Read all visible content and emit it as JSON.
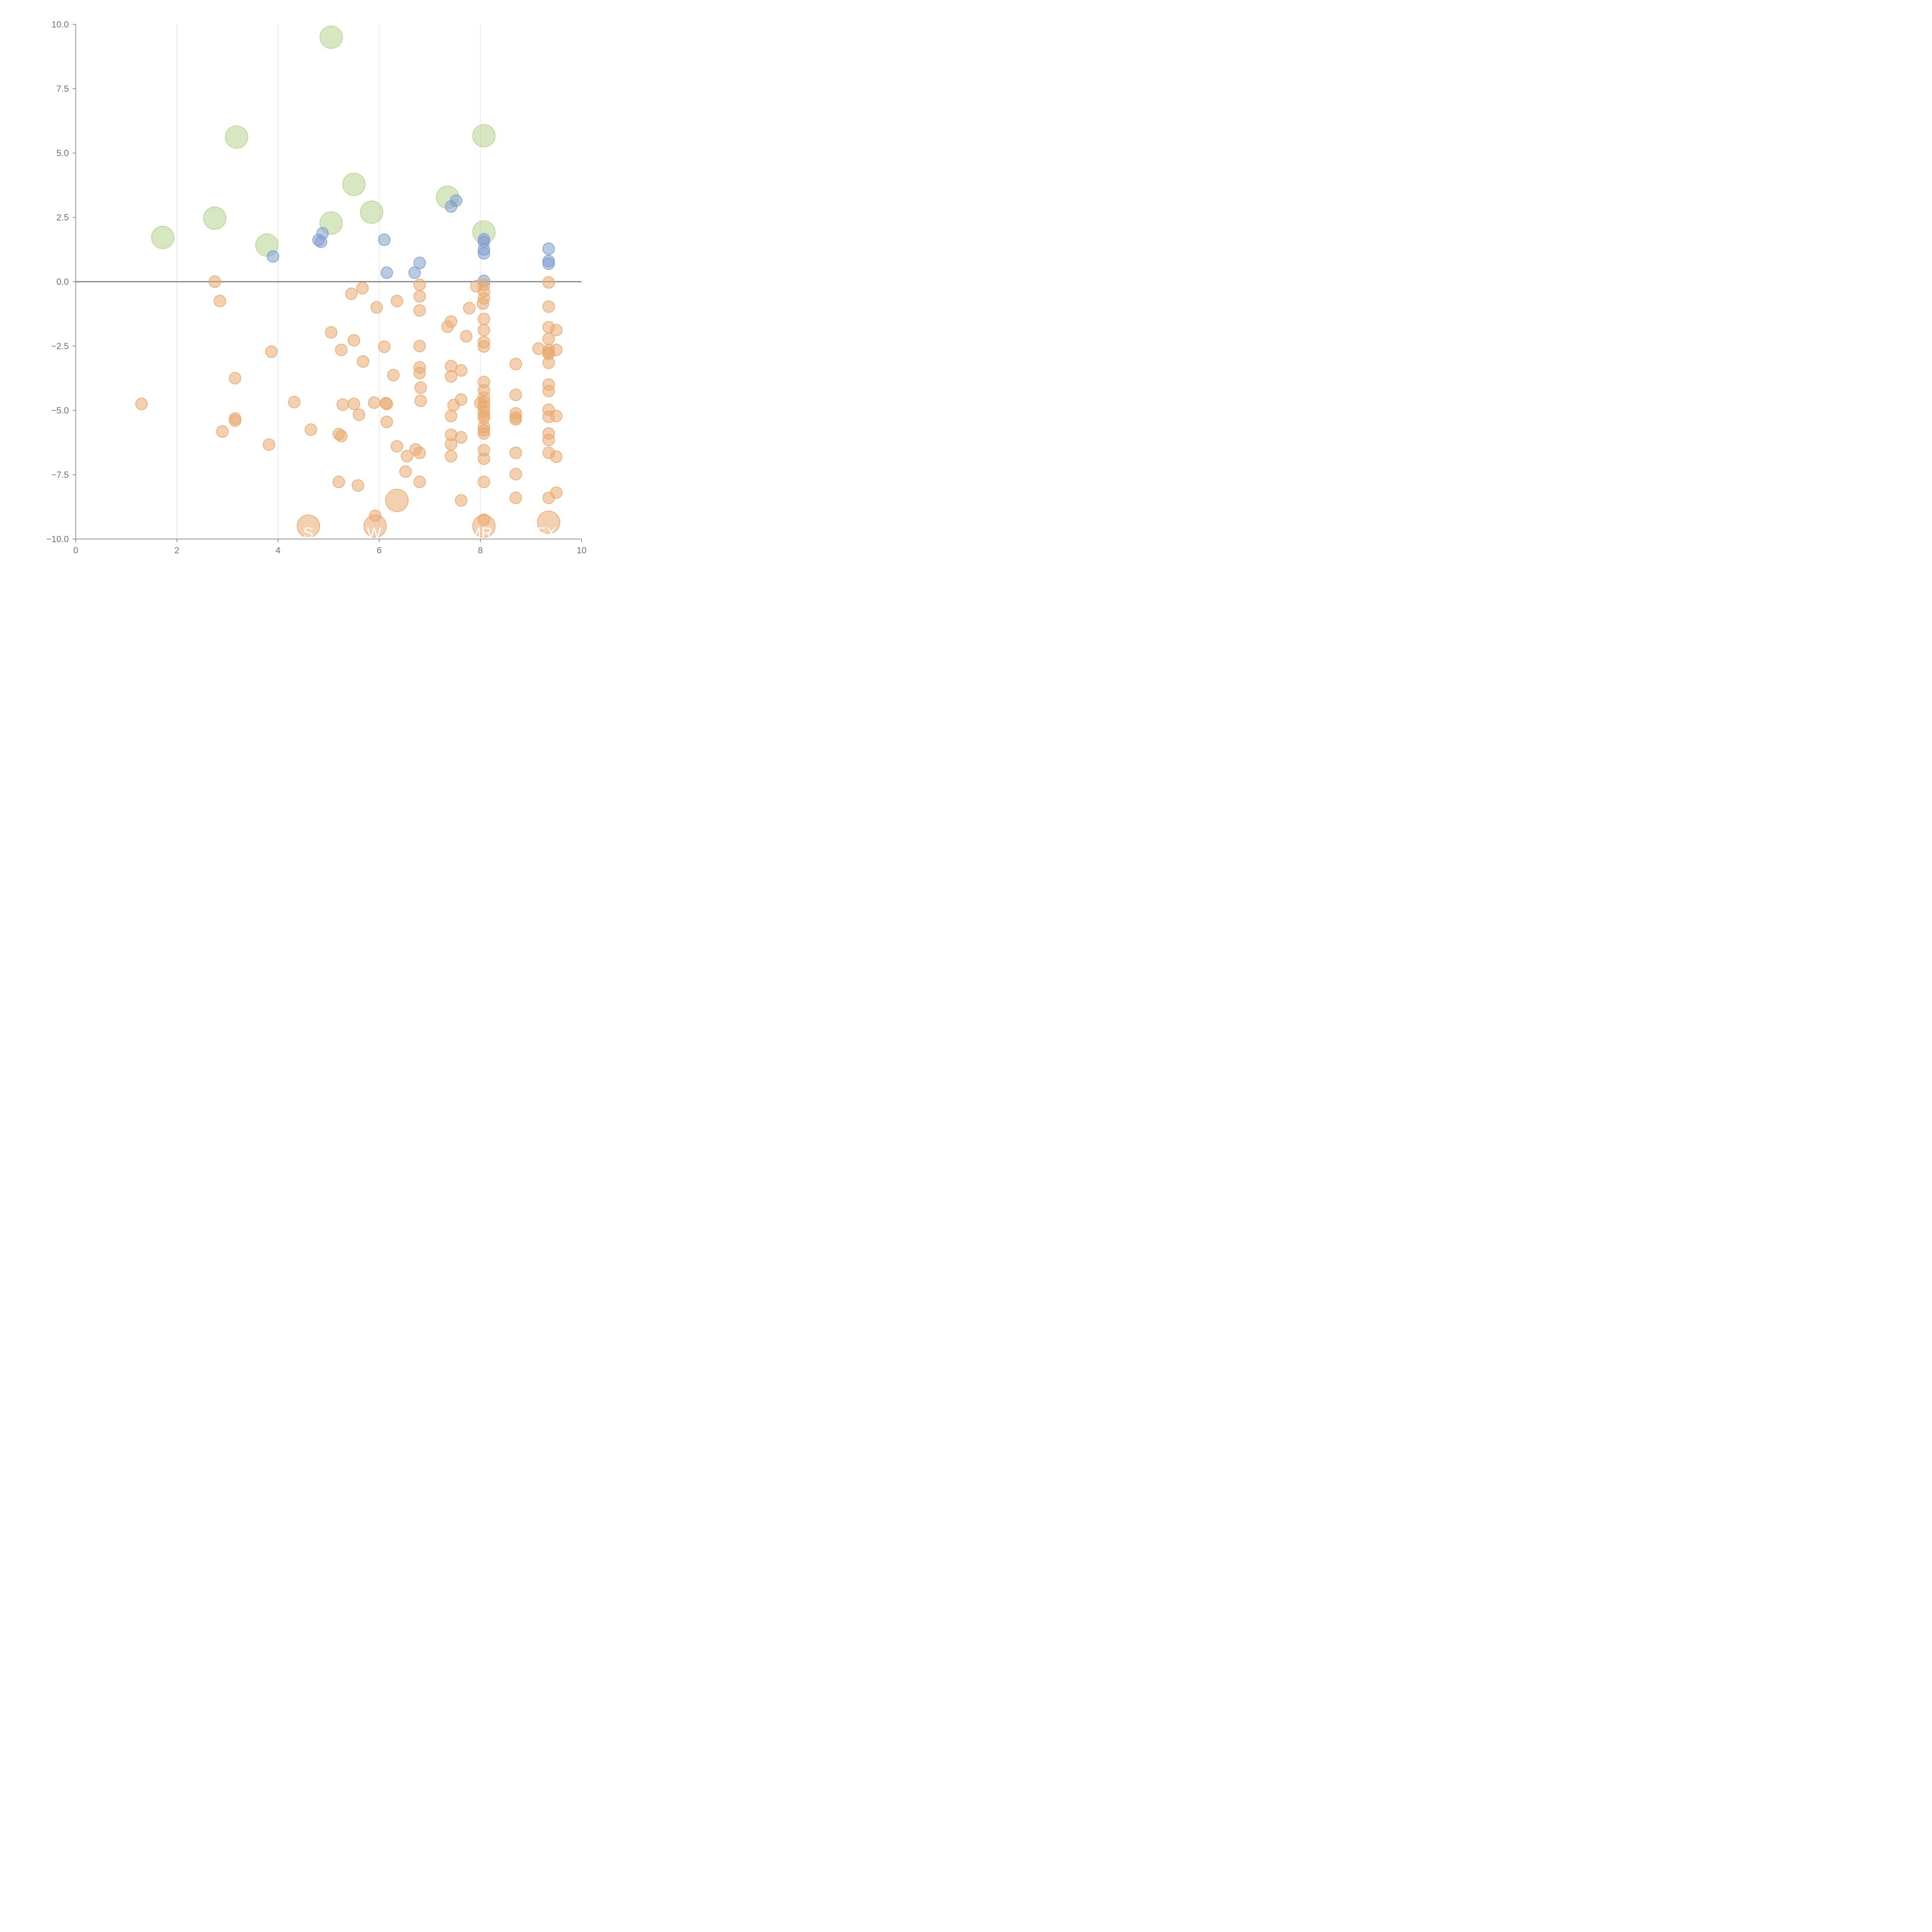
{
  "chart_data": {
    "type": "scatter",
    "xlim": [
      0,
      10
    ],
    "ylim": [
      -10,
      10
    ],
    "x_ticks": [
      "0",
      "2",
      "4",
      "6",
      "8",
      "10"
    ],
    "y_ticks": [
      "10.0",
      "7.5",
      "5.0",
      "2.5",
      "0.0",
      "−2.5",
      "−5.0",
      "−7.5",
      "−10.0"
    ],
    "grid": "vertical",
    "reference_line_y": 0,
    "colors": {
      "green": "#b7d48f",
      "blue": "#7f9fcf",
      "orange": "#eaa96f"
    },
    "bubble_labels": [
      {
        "text": "S",
        "x": 4.6,
        "y": -9.6
      },
      {
        "text": "W",
        "x": 5.9,
        "y": -9.6
      },
      {
        "text": "MR",
        "x": 8.0,
        "y": -9.6
      },
      {
        "text": "EX",
        "x": 9.3,
        "y": -9.6
      }
    ],
    "series": [
      {
        "color": "#b7d48f",
        "size": "large",
        "points": [
          [
            1.72,
            1.72
          ],
          [
            2.75,
            2.47
          ],
          [
            3.18,
            5.62
          ],
          [
            3.78,
            1.42
          ],
          [
            5.05,
            9.5
          ],
          [
            5.05,
            2.28
          ],
          [
            5.5,
            3.78
          ],
          [
            5.85,
            2.7
          ],
          [
            7.35,
            3.28
          ],
          [
            8.07,
            5.67
          ],
          [
            8.07,
            1.93
          ]
        ]
      },
      {
        "color": "#7f9fcf",
        "size": "small",
        "points": [
          [
            3.9,
            0.98
          ],
          [
            4.8,
            1.62
          ],
          [
            4.85,
            1.55
          ],
          [
            4.88,
            1.88
          ],
          [
            6.1,
            1.63
          ],
          [
            6.15,
            0.35
          ],
          [
            6.7,
            0.35
          ],
          [
            6.8,
            0.73
          ],
          [
            7.42,
            2.92
          ],
          [
            7.52,
            3.15
          ],
          [
            8.07,
            1.65
          ],
          [
            8.07,
            1.55
          ],
          [
            8.07,
            1.25
          ],
          [
            8.07,
            1.1
          ],
          [
            8.07,
            0.03
          ],
          [
            9.35,
            1.28
          ],
          [
            9.35,
            0.8
          ],
          [
            9.35,
            0.7
          ]
        ]
      },
      {
        "color": "#eaa96f",
        "size": "small",
        "points": [
          [
            1.3,
            -4.75
          ],
          [
            2.75,
            0.0
          ],
          [
            2.85,
            -0.75
          ],
          [
            2.9,
            -5.82
          ],
          [
            3.15,
            -3.75
          ],
          [
            3.15,
            -5.32
          ],
          [
            3.15,
            -5.4
          ],
          [
            3.82,
            -6.33
          ],
          [
            3.87,
            -2.72
          ],
          [
            4.32,
            -4.68
          ],
          [
            4.65,
            -5.75
          ],
          [
            5.05,
            -1.97
          ],
          [
            5.2,
            -5.92
          ],
          [
            5.2,
            -7.78
          ],
          [
            5.25,
            -2.65
          ],
          [
            5.25,
            -6.0
          ],
          [
            5.28,
            -4.78
          ],
          [
            5.45,
            -0.47
          ],
          [
            5.5,
            -2.28
          ],
          [
            5.5,
            -4.75
          ],
          [
            5.6,
            -5.17
          ],
          [
            5.58,
            -7.92
          ],
          [
            5.67,
            -0.25
          ],
          [
            5.68,
            -3.1
          ],
          [
            5.9,
            -4.7
          ],
          [
            5.92,
            -9.1
          ],
          [
            5.95,
            -1.0
          ],
          [
            6.1,
            -2.53
          ],
          [
            6.13,
            -4.72
          ],
          [
            6.15,
            -4.75
          ],
          [
            6.15,
            -5.45
          ],
          [
            6.28,
            -3.63
          ],
          [
            6.35,
            -0.75
          ],
          [
            6.35,
            -6.4
          ],
          [
            6.52,
            -7.38
          ],
          [
            6.55,
            -6.78
          ],
          [
            6.72,
            -6.52
          ],
          [
            6.8,
            -0.12
          ],
          [
            6.8,
            -0.57
          ],
          [
            6.8,
            -1.12
          ],
          [
            6.8,
            -2.5
          ],
          [
            6.8,
            -3.33
          ],
          [
            6.8,
            -3.55
          ],
          [
            6.82,
            -4.12
          ],
          [
            6.82,
            -4.63
          ],
          [
            6.8,
            -6.65
          ],
          [
            6.8,
            -7.78
          ],
          [
            7.35,
            -1.75
          ],
          [
            7.42,
            -1.55
          ],
          [
            7.42,
            -3.28
          ],
          [
            7.42,
            -3.68
          ],
          [
            7.42,
            -5.22
          ],
          [
            7.42,
            -5.95
          ],
          [
            7.42,
            -6.32
          ],
          [
            7.42,
            -6.78
          ],
          [
            7.47,
            -4.8
          ],
          [
            7.62,
            -3.45
          ],
          [
            7.62,
            -4.58
          ],
          [
            7.62,
            -6.05
          ],
          [
            7.62,
            -8.5
          ],
          [
            7.72,
            -2.12
          ],
          [
            7.78,
            -1.03
          ],
          [
            7.92,
            -0.18
          ],
          [
            8.0,
            -4.72
          ],
          [
            8.05,
            -0.85
          ],
          [
            8.07,
            -0.12
          ],
          [
            8.07,
            -0.37
          ],
          [
            8.07,
            -0.65
          ],
          [
            8.07,
            -1.45
          ],
          [
            8.07,
            -1.88
          ],
          [
            8.07,
            -2.35
          ],
          [
            8.07,
            -2.52
          ],
          [
            8.07,
            -3.9
          ],
          [
            8.07,
            -4.22
          ],
          [
            8.07,
            -4.5
          ],
          [
            8.07,
            -4.68
          ],
          [
            8.07,
            -4.85
          ],
          [
            8.07,
            -5.05
          ],
          [
            8.07,
            -5.2
          ],
          [
            8.07,
            -5.3
          ],
          [
            8.07,
            -5.65
          ],
          [
            8.07,
            -5.78
          ],
          [
            8.07,
            -5.9
          ],
          [
            8.07,
            -6.55
          ],
          [
            8.07,
            -6.88
          ],
          [
            8.07,
            -7.78
          ],
          [
            8.07,
            -9.25
          ],
          [
            8.7,
            -3.2
          ],
          [
            8.7,
            -4.4
          ],
          [
            8.7,
            -5.12
          ],
          [
            8.7,
            -5.28
          ],
          [
            8.7,
            -5.35
          ],
          [
            8.7,
            -6.65
          ],
          [
            8.7,
            -7.48
          ],
          [
            8.7,
            -8.4
          ],
          [
            9.15,
            -2.6
          ],
          [
            9.35,
            -0.03
          ],
          [
            9.35,
            -0.97
          ],
          [
            9.35,
            -1.77
          ],
          [
            9.35,
            -2.22
          ],
          [
            9.35,
            -2.65
          ],
          [
            9.35,
            -2.75
          ],
          [
            9.35,
            -2.8
          ],
          [
            9.35,
            -3.15
          ],
          [
            9.35,
            -4.0
          ],
          [
            9.35,
            -4.25
          ],
          [
            9.35,
            -4.98
          ],
          [
            9.35,
            -5.25
          ],
          [
            9.35,
            -5.9
          ],
          [
            9.35,
            -6.15
          ],
          [
            9.35,
            -6.65
          ],
          [
            9.35,
            -8.4
          ],
          [
            9.5,
            -1.88
          ],
          [
            9.5,
            -2.65
          ],
          [
            9.5,
            -5.22
          ],
          [
            9.5,
            -6.8
          ],
          [
            9.5,
            -8.2
          ]
        ]
      },
      {
        "color": "#eaa96f",
        "size": "large",
        "points": [
          [
            6.35,
            -8.5
          ],
          [
            4.6,
            -9.5
          ],
          [
            5.92,
            -9.5
          ],
          [
            8.07,
            -9.5
          ],
          [
            9.35,
            -9.35
          ]
        ]
      }
    ]
  }
}
